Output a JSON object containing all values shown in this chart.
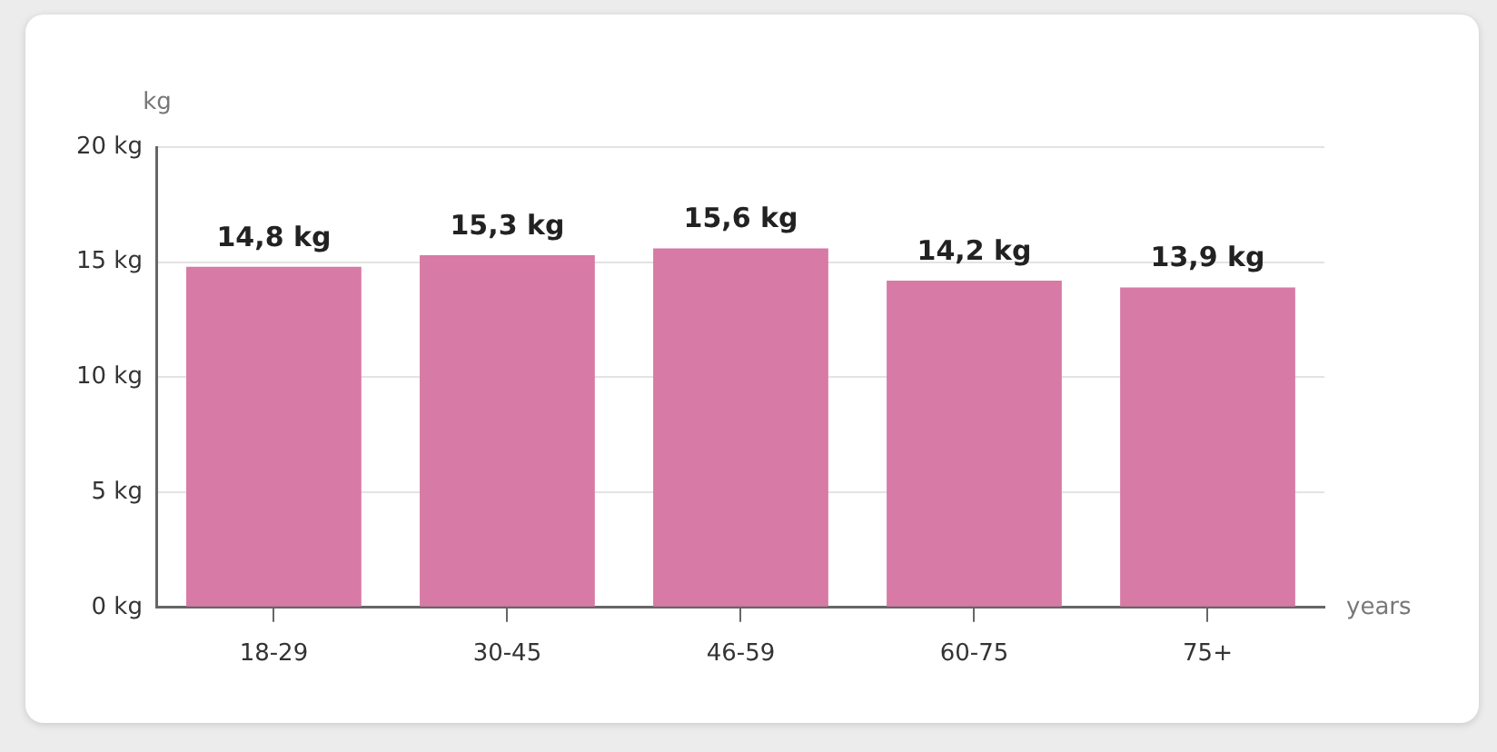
{
  "chart_data": {
    "type": "bar",
    "xlabel": "years",
    "ylabel": "kg",
    "categories": [
      "18-29",
      "30-45",
      "46-59",
      "60-75",
      "75+"
    ],
    "values": [
      14.8,
      15.3,
      15.6,
      14.2,
      13.9
    ],
    "value_labels": [
      "14,8 kg",
      "15,3 kg",
      "15,6 kg",
      "14,2 kg",
      "13,9 kg"
    ],
    "color": "#d77aa6",
    "ylim": [
      0,
      20
    ],
    "yticks": [
      {
        "value": 0,
        "label": "0 kg"
      },
      {
        "value": 5,
        "label": "5 kg"
      },
      {
        "value": 10,
        "label": "10 kg"
      },
      {
        "value": 15,
        "label": "15 kg"
      },
      {
        "value": 20,
        "label": "20 kg"
      }
    ],
    "grid": "y",
    "legend": false
  }
}
